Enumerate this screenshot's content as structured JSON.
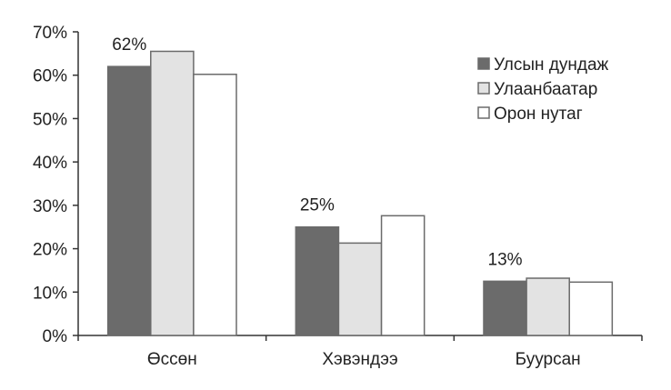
{
  "chart_data": {
    "type": "bar",
    "categories": [
      "Өссөн",
      "Хэвэндээ",
      "Буурсан"
    ],
    "series": [
      {
        "name": "Улсын дундаж",
        "values": [
          62,
          25,
          12.5
        ],
        "color": "#6b6b6b",
        "stroke": "#6b6b6b"
      },
      {
        "name": "Улаанбаатар",
        "values": [
          65.5,
          21.3,
          13.2
        ],
        "color": "#e3e3e3",
        "stroke": "#6b6b6b"
      },
      {
        "name": "Орон нутаг",
        "values": [
          60.2,
          27.6,
          12.3
        ],
        "color": "#ffffff",
        "stroke": "#6b6b6b"
      }
    ],
    "data_labels": [
      "62%",
      "25%",
      "13%"
    ],
    "y_ticks": [
      "0%",
      "10%",
      "20%",
      "30%",
      "40%",
      "50%",
      "60%",
      "70%"
    ],
    "ylim": [
      0,
      70
    ],
    "y_unit": "%",
    "grid": false,
    "legend_position": "top-right"
  }
}
